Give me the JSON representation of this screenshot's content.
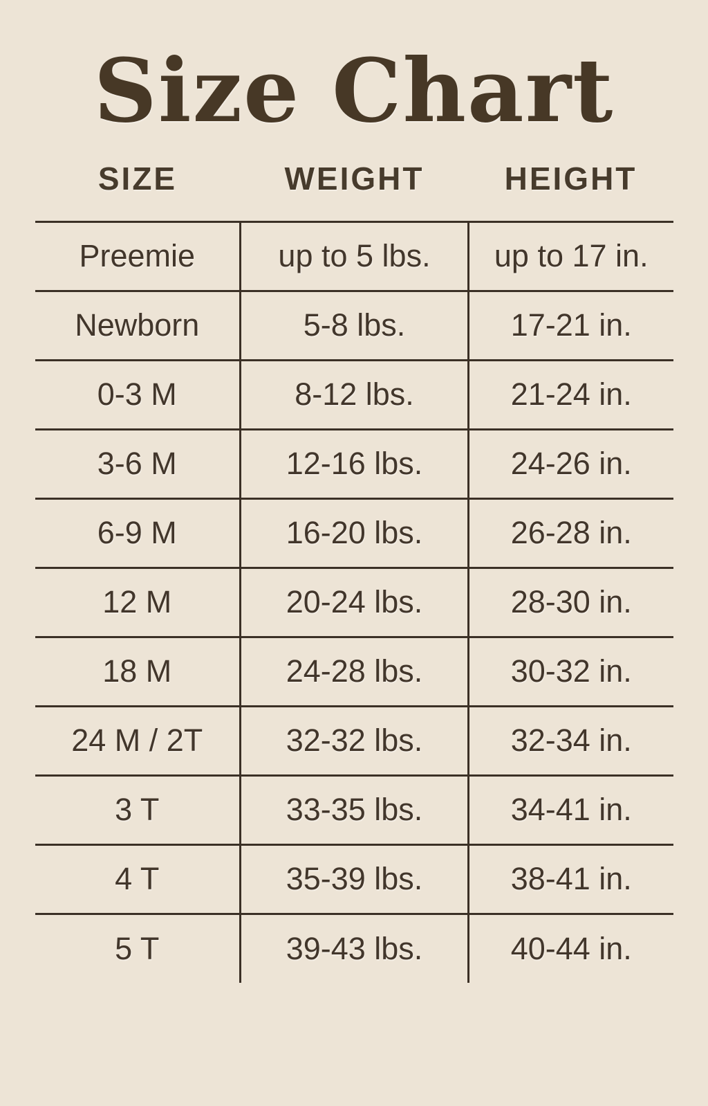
{
  "page": {
    "title": "Size Chart"
  },
  "colors": {
    "background": "#EDE4D6",
    "text": "#42362B",
    "line": "#3B3026",
    "title": "#473826"
  },
  "chart_data": {
    "type": "table",
    "title": "Size Chart",
    "columns": [
      "SIZE",
      "WEIGHT",
      "HEIGHT"
    ],
    "rows": [
      [
        "Preemie",
        "up to 5 lbs.",
        "up to 17 in."
      ],
      [
        "Newborn",
        "5-8 lbs.",
        "17-21 in."
      ],
      [
        "0-3 M",
        "8-12 lbs.",
        "21-24 in."
      ],
      [
        "3-6 M",
        "12-16 lbs.",
        "24-26 in."
      ],
      [
        "6-9 M",
        "16-20 lbs.",
        "26-28 in."
      ],
      [
        "12 M",
        "20-24 lbs.",
        "28-30 in."
      ],
      [
        "18 M",
        "24-28 lbs.",
        "30-32 in."
      ],
      [
        "24 M / 2T",
        "32-32 lbs.",
        "32-34 in."
      ],
      [
        "3 T",
        "33-35 lbs.",
        "34-41 in."
      ],
      [
        "4 T",
        "35-39 lbs.",
        "38-41 in."
      ],
      [
        "5 T",
        "39-43 lbs.",
        "40-44 in."
      ]
    ]
  }
}
